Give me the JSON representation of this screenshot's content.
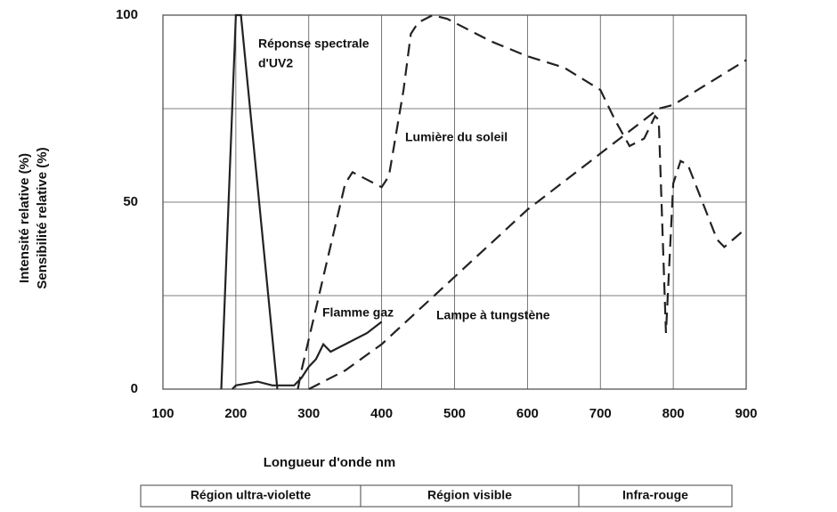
{
  "chart_data": {
    "type": "line",
    "xlabel": "Longueur d'onde nm",
    "ylabel_lines": [
      "Intensité relative (%)",
      "Sensibilité relative (%)"
    ],
    "xlim": [
      100,
      900
    ],
    "ylim": [
      0,
      100
    ],
    "xticks": [
      100,
      200,
      300,
      400,
      500,
      600,
      700,
      800,
      900
    ],
    "yticks": [
      0,
      50,
      100
    ],
    "ygrid_minor": [
      25,
      75
    ],
    "grid": true,
    "series": [
      {
        "name_lines": [
          "Réponse spectrale",
          "d'UV2"
        ],
        "color": "#222",
        "dashed": false,
        "x": [
          180,
          200,
          207,
          257
        ],
        "values": [
          0,
          100,
          100,
          0
        ]
      },
      {
        "name": "Lumière du soleil",
        "color": "#222",
        "dashed": true,
        "x": [
          285,
          290,
          320,
          350,
          360,
          380,
          400,
          410,
          430,
          440,
          450,
          470,
          490,
          550,
          600,
          650,
          700,
          720,
          740,
          760,
          775,
          780,
          790,
          800,
          810,
          820,
          840,
          860,
          870,
          900
        ],
        "values": [
          0,
          5,
          30,
          55,
          58,
          56,
          54,
          57,
          80,
          95,
          98,
          100,
          99,
          93,
          89,
          86,
          80,
          72,
          65,
          67,
          73,
          72,
          15,
          55,
          61,
          60,
          50,
          40,
          38,
          43
        ]
      },
      {
        "name": "Flamme gaz",
        "color": "#222",
        "dashed": false,
        "x": [
          195,
          200,
          230,
          250,
          280,
          290,
          300,
          310,
          320,
          330,
          350,
          380,
          400
        ],
        "values": [
          0,
          1,
          2,
          1,
          1,
          3,
          6,
          8,
          12,
          10,
          12,
          15,
          18
        ]
      },
      {
        "name": "Lampe à tungstène",
        "color": "#222",
        "dashed": true,
        "x": [
          300,
          350,
          400,
          500,
          600,
          700,
          780,
          800,
          900
        ],
        "values": [
          0,
          5,
          12,
          30,
          48,
          63,
          75,
          76,
          88
        ]
      }
    ],
    "regions": [
      "Région ultra-violette",
      "Région visible",
      "Infra-rouge"
    ]
  }
}
